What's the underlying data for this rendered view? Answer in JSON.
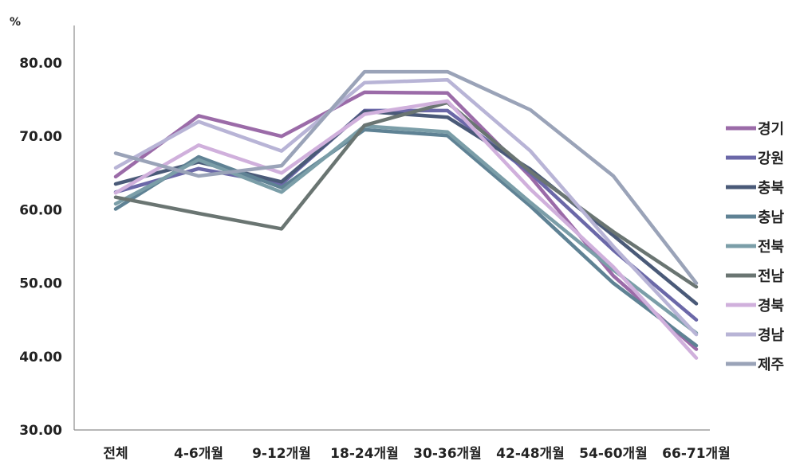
{
  "chart_data": {
    "type": "line",
    "title": "",
    "ylabel": "%",
    "xlabel": "",
    "ylim": [
      30,
      80
    ],
    "yticks": [
      "30.00",
      "40.00",
      "50.00",
      "60.00",
      "70.00",
      "80.00"
    ],
    "grid": false,
    "legend": "right",
    "categories": [
      "전체",
      "4-6개월",
      "9-12개월",
      "18-24개월",
      "30-36개월",
      "42-48개월",
      "54-60개월",
      "66-71개월"
    ],
    "series": [
      {
        "name": "경기",
        "color": "#9b6ba8",
        "values": [
          64.5,
          72.8,
          70.0,
          76.0,
          75.9,
          64.5,
          51.0,
          41.0
        ]
      },
      {
        "name": "강원",
        "color": "#6b68a8",
        "values": [
          62.4,
          65.6,
          63.5,
          73.5,
          73.5,
          65.0,
          54.5,
          45.0
        ]
      },
      {
        "name": "충북",
        "color": "#4a5a78",
        "values": [
          63.5,
          66.5,
          63.8,
          73.4,
          72.6,
          65.5,
          56.5,
          47.2
        ]
      },
      {
        "name": "충남",
        "color": "#5f8294",
        "values": [
          60.1,
          67.2,
          63.0,
          70.9,
          70.1,
          60.5,
          50.0,
          41.5
        ]
      },
      {
        "name": "전북",
        "color": "#7b9ea8",
        "values": [
          60.8,
          66.8,
          62.4,
          71.4,
          70.6,
          61.0,
          51.8,
          43.2
        ]
      },
      {
        "name": "전남",
        "color": "#6a7572",
        "values": [
          61.7,
          59.5,
          57.4,
          71.5,
          74.6,
          65.2,
          57.0,
          49.5
        ]
      },
      {
        "name": "경북",
        "color": "#d0b0dc",
        "values": [
          62.3,
          68.8,
          65.0,
          73.0,
          74.8,
          62.8,
          52.2,
          39.8
        ]
      },
      {
        "name": "경남",
        "color": "#b8b4d6",
        "values": [
          65.7,
          72.0,
          68.0,
          77.3,
          77.7,
          68.0,
          55.0,
          43.0
        ]
      },
      {
        "name": "제주",
        "color": "#9aa3b8",
        "values": [
          67.7,
          64.6,
          66.0,
          78.8,
          78.8,
          73.6,
          64.6,
          50.0
        ]
      }
    ]
  }
}
